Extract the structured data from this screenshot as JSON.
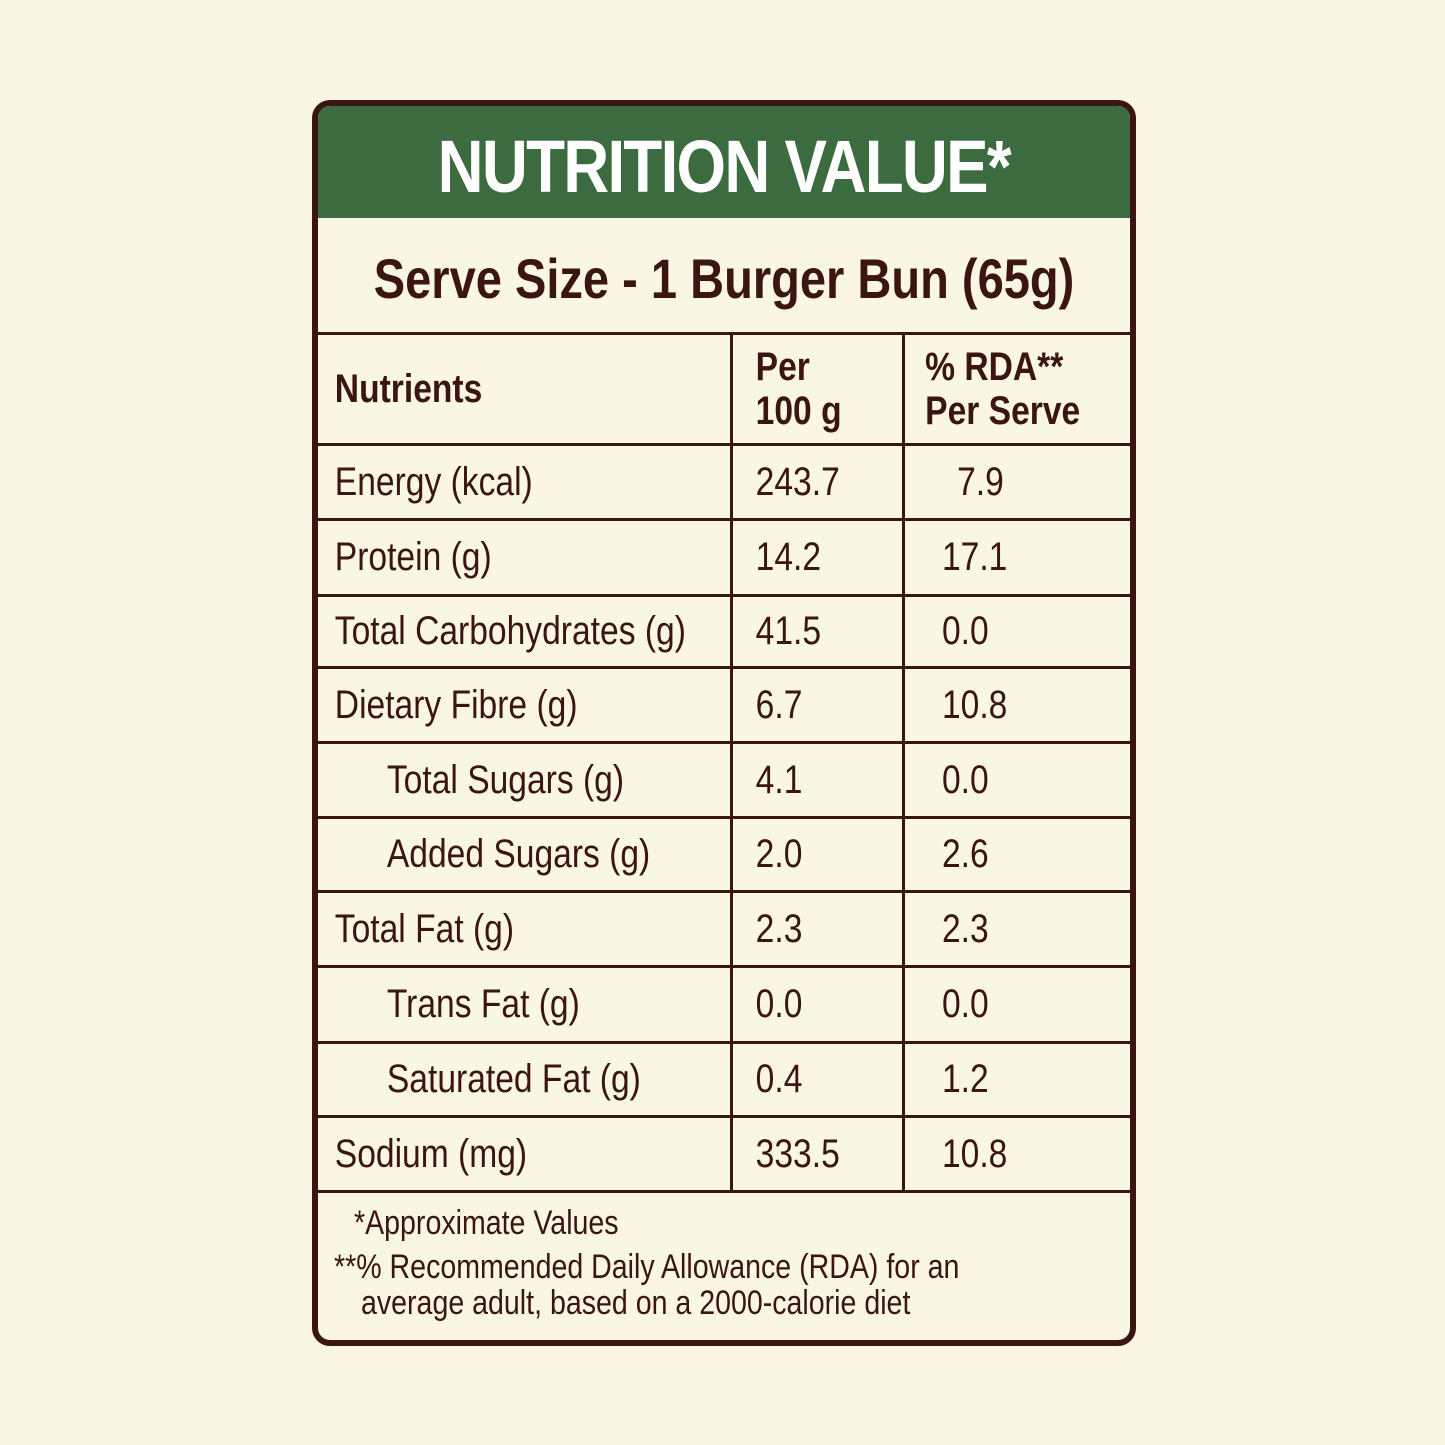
{
  "title": "NUTRITION VALUE*",
  "serve_size": "Serve Size - 1 Burger Bun (65g)",
  "colors": {
    "background": "#f9f6e4",
    "header_green": "#3d6b40",
    "text_brown": "#3b1511",
    "title_text": "#ffffff"
  },
  "table": {
    "headers": {
      "nutrients": "Nutrients",
      "per_100g_line1": "Per",
      "per_100g_line2": "100 g",
      "rda_line1": "% RDA**",
      "rda_line2": "Per Serve"
    },
    "rows": [
      {
        "nutrient": "Energy (kcal)",
        "per_100g": "243.7",
        "rda_per_serve": "7.9",
        "indent": false
      },
      {
        "nutrient": "Protein (g)",
        "per_100g": "14.2",
        "rda_per_serve": "17.1",
        "indent": false
      },
      {
        "nutrient": "Total Carbohydrates (g)",
        "per_100g": "41.5",
        "rda_per_serve": "0.0",
        "indent": false
      },
      {
        "nutrient": "Dietary Fibre (g)",
        "per_100g": "6.7",
        "rda_per_serve": "10.8",
        "indent": false
      },
      {
        "nutrient": "Total Sugars (g)",
        "per_100g": "4.1",
        "rda_per_serve": "0.0",
        "indent": true
      },
      {
        "nutrient": "Added Sugars (g)",
        "per_100g": "2.0",
        "rda_per_serve": "2.6",
        "indent": true
      },
      {
        "nutrient": "Total Fat (g)",
        "per_100g": "2.3",
        "rda_per_serve": "2.3",
        "indent": false
      },
      {
        "nutrient": "Trans Fat (g)",
        "per_100g": "0.0",
        "rda_per_serve": "0.0",
        "indent": true
      },
      {
        "nutrient": "Saturated Fat (g)",
        "per_100g": "0.4",
        "rda_per_serve": "1.2",
        "indent": true
      },
      {
        "nutrient": "Sodium (mg)",
        "per_100g": "333.5",
        "rda_per_serve": "10.8",
        "indent": false
      }
    ]
  },
  "footnotes": {
    "approx": "*Approximate Values",
    "rda_line1": "**% Recommended Daily Allowance (RDA) for an",
    "rda_line2": "average adult, based on a 2000-calorie diet"
  }
}
